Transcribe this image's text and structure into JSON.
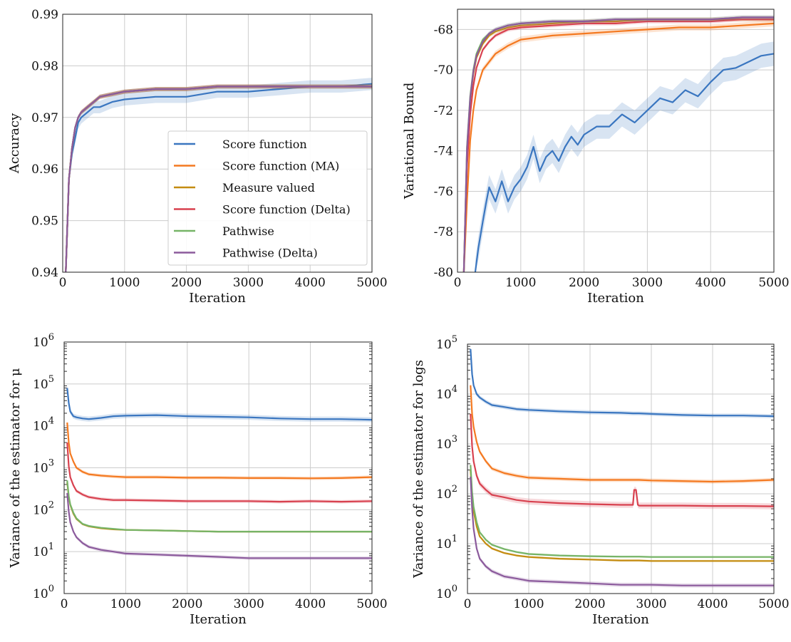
{
  "legend": [
    {
      "name": "Score function",
      "color": "#3a76c0"
    },
    {
      "name": "Score function (MA)",
      "color": "#f47920"
    },
    {
      "name": "Measure valued",
      "color": "#c48c11"
    },
    {
      "name": "Score function (Delta)",
      "color": "#d8414f"
    },
    {
      "name": "Pathwise",
      "color": "#76b467"
    },
    {
      "name": "Pathwise (Delta)",
      "color": "#8b5a9c"
    }
  ],
  "chart_data": [
    {
      "type": "line",
      "xlabel": "Iteration",
      "ylabel": "Accuracy",
      "xlim": [
        0,
        5000
      ],
      "ylim": [
        0.94,
        0.99
      ],
      "xticks": [
        0,
        1000,
        2000,
        3000,
        4000,
        5000
      ],
      "yticks": [
        0.94,
        0.95,
        0.96,
        0.97,
        0.98,
        0.99
      ],
      "ytick_labels": [
        "0.94",
        "0.95",
        "0.96",
        "0.97",
        "0.98",
        "0.99"
      ],
      "grid": true,
      "legend_position": "lower right",
      "x": [
        50,
        100,
        150,
        200,
        250,
        300,
        400,
        500,
        600,
        800,
        1000,
        1500,
        2000,
        2500,
        3000,
        3500,
        4000,
        4500,
        5000
      ],
      "series": [
        {
          "name": "Score function",
          "values": [
            0.94,
            0.958,
            0.963,
            0.966,
            0.969,
            0.97,
            0.971,
            0.972,
            0.972,
            0.973,
            0.9735,
            0.974,
            0.974,
            0.975,
            0.975,
            0.9755,
            0.976,
            0.976,
            0.9765
          ],
          "band": 0.0012
        },
        {
          "name": "Score function (MA)",
          "values": [
            0.94,
            0.958,
            0.964,
            0.968,
            0.97,
            0.971,
            0.972,
            0.973,
            0.974,
            0.9745,
            0.975,
            0.9755,
            0.9755,
            0.976,
            0.976,
            0.976,
            0.976,
            0.976,
            0.976
          ],
          "band": 0.0004
        },
        {
          "name": "Measure valued",
          "values": [
            0.94,
            0.958,
            0.964,
            0.968,
            0.97,
            0.971,
            0.972,
            0.973,
            0.974,
            0.9745,
            0.975,
            0.9755,
            0.9755,
            0.976,
            0.976,
            0.976,
            0.976,
            0.976,
            0.976
          ],
          "band": 0.0004
        },
        {
          "name": "Score function (Delta)",
          "values": [
            0.94,
            0.958,
            0.964,
            0.968,
            0.97,
            0.971,
            0.972,
            0.973,
            0.974,
            0.9745,
            0.975,
            0.9755,
            0.9755,
            0.976,
            0.976,
            0.976,
            0.976,
            0.976,
            0.976
          ],
          "band": 0.0004
        },
        {
          "name": "Pathwise",
          "values": [
            0.94,
            0.958,
            0.964,
            0.968,
            0.97,
            0.971,
            0.972,
            0.973,
            0.974,
            0.9745,
            0.975,
            0.9755,
            0.9755,
            0.976,
            0.976,
            0.976,
            0.976,
            0.976,
            0.976
          ],
          "band": 0.0004
        },
        {
          "name": "Pathwise (Delta)",
          "values": [
            0.94,
            0.958,
            0.964,
            0.968,
            0.97,
            0.971,
            0.972,
            0.973,
            0.974,
            0.9745,
            0.975,
            0.9755,
            0.9755,
            0.976,
            0.976,
            0.976,
            0.976,
            0.976,
            0.976
          ],
          "band": 0.0004
        }
      ]
    },
    {
      "type": "line",
      "xlabel": "Iteration",
      "ylabel": "Variational Bound",
      "xlim": [
        0,
        5000
      ],
      "ylim": [
        -80,
        -67
      ],
      "xticks": [
        0,
        1000,
        2000,
        3000,
        4000,
        5000
      ],
      "yticks": [
        -80,
        -78,
        -76,
        -74,
        -72,
        -70,
        -68
      ],
      "ytick_labels": [
        "-80",
        "-78",
        "-76",
        "-74",
        "-72",
        "-70",
        "-68"
      ],
      "grid": true,
      "series": [
        {
          "name": "Score function",
          "x": [
            280,
            330,
            400,
            450,
            500,
            600,
            700,
            800,
            900,
            1000,
            1100,
            1200,
            1300,
            1400,
            1500,
            1600,
            1700,
            1800,
            1900,
            2000,
            2200,
            2400,
            2600,
            2800,
            3000,
            3200,
            3400,
            3600,
            3800,
            4000,
            4200,
            4400,
            4600,
            4800,
            5000
          ],
          "values": [
            -80,
            -78.8,
            -77.5,
            -76.6,
            -75.8,
            -76.5,
            -75.5,
            -76.5,
            -75.8,
            -75.4,
            -74.8,
            -73.8,
            -75.0,
            -74.3,
            -74.0,
            -74.5,
            -73.8,
            -73.3,
            -73.7,
            -73.2,
            -72.8,
            -72.8,
            -72.2,
            -72.6,
            -72.0,
            -71.4,
            -71.6,
            -71.0,
            -71.3,
            -70.6,
            -70.0,
            -69.9,
            -69.6,
            -69.3,
            -69.2
          ],
          "band": 0.6
        },
        {
          "name": "Score function (MA)",
          "x": [
            100,
            150,
            200,
            250,
            300,
            400,
            500,
            600,
            800,
            1000,
            1500,
            2000,
            2500,
            3000,
            3500,
            4000,
            4500,
            5000
          ],
          "values": [
            -80,
            -76.5,
            -73.5,
            -72.0,
            -71.0,
            -70.0,
            -69.6,
            -69.2,
            -68.8,
            -68.5,
            -68.3,
            -68.2,
            -68.1,
            -68.0,
            -67.9,
            -67.9,
            -67.8,
            -67.7
          ],
          "band": 0.15
        },
        {
          "name": "Measure valued",
          "x": [
            100,
            150,
            200,
            250,
            300,
            400,
            500,
            600,
            800,
            1000,
            1500,
            2000,
            2500,
            3000,
            3500,
            4000,
            4500,
            5000
          ],
          "values": [
            -80,
            -74.0,
            -71.5,
            -70.2,
            -69.4,
            -68.7,
            -68.3,
            -68.1,
            -67.9,
            -67.8,
            -67.7,
            -67.6,
            -67.6,
            -67.5,
            -67.5,
            -67.5,
            -67.5,
            -67.5
          ],
          "band": 0.1
        },
        {
          "name": "Score function (Delta)",
          "x": [
            100,
            150,
            200,
            250,
            300,
            400,
            500,
            600,
            800,
            1000,
            1500,
            2000,
            2500,
            3000,
            3500,
            4000,
            4500,
            5000
          ],
          "values": [
            -80,
            -74.8,
            -72.2,
            -70.8,
            -69.9,
            -69.0,
            -68.6,
            -68.3,
            -68.0,
            -67.9,
            -67.8,
            -67.7,
            -67.7,
            -67.6,
            -67.6,
            -67.6,
            -67.5,
            -67.5
          ],
          "band": 0.1
        },
        {
          "name": "Pathwise",
          "x": [
            100,
            150,
            200,
            250,
            300,
            400,
            500,
            600,
            800,
            1000,
            1500,
            2000,
            2500,
            3000,
            3500,
            4000,
            4500,
            5000
          ],
          "values": [
            -80,
            -73.8,
            -71.3,
            -70.0,
            -69.2,
            -68.5,
            -68.2,
            -68.0,
            -67.8,
            -67.7,
            -67.6,
            -67.6,
            -67.5,
            -67.5,
            -67.5,
            -67.5,
            -67.4,
            -67.4
          ],
          "band": 0.1
        },
        {
          "name": "Pathwise (Delta)",
          "x": [
            100,
            150,
            200,
            250,
            300,
            400,
            500,
            600,
            800,
            1000,
            1500,
            2000,
            2500,
            3000,
            3500,
            4000,
            4500,
            5000
          ],
          "values": [
            -80,
            -73.9,
            -71.4,
            -70.1,
            -69.3,
            -68.6,
            -68.2,
            -68.0,
            -67.8,
            -67.7,
            -67.6,
            -67.6,
            -67.5,
            -67.5,
            -67.5,
            -67.5,
            -67.4,
            -67.4
          ],
          "band": 0.1
        }
      ]
    },
    {
      "type": "line",
      "scale": "log",
      "xlabel": "Iteration",
      "ylabel": "Variance of the estimator for μ",
      "xlim": [
        0,
        5000
      ],
      "ylim": [
        1,
        1000000
      ],
      "xticks": [
        0,
        1000,
        2000,
        3000,
        4000,
        5000
      ],
      "yticks": [
        1,
        10,
        100,
        1000,
        10000,
        100000,
        1000000
      ],
      "ytick_base": "10",
      "ytick_exponents": [
        "0",
        "1",
        "2",
        "3",
        "4",
        "5",
        "6"
      ],
      "grid": true,
      "x": [
        50,
        75,
        100,
        150,
        200,
        300,
        400,
        600,
        800,
        1000,
        1500,
        2000,
        2500,
        3000,
        3500,
        4000,
        4500,
        5000
      ],
      "series": [
        {
          "name": "Score function",
          "values": [
            80000,
            35000,
            22000,
            17000,
            16000,
            15000,
            14500,
            15500,
            17000,
            17500,
            18000,
            17000,
            16500,
            16000,
            15000,
            14500,
            14500,
            14000
          ],
          "band": 1.15
        },
        {
          "name": "Score function (MA)",
          "values": [
            12000,
            4000,
            2200,
            1400,
            1000,
            800,
            700,
            650,
            620,
            600,
            600,
            580,
            580,
            570,
            570,
            560,
            570,
            600
          ],
          "band": 1.1
        },
        {
          "name": "Measure valued",
          "values": [
            450,
            200,
            130,
            80,
            60,
            45,
            40,
            36,
            34,
            33,
            32,
            31,
            30,
            30,
            30,
            30,
            30,
            30
          ],
          "band": 1.05
        },
        {
          "name": "Score function (Delta)",
          "values": [
            4000,
            1100,
            600,
            380,
            280,
            230,
            200,
            180,
            170,
            170,
            165,
            160,
            160,
            160,
            155,
            160,
            155,
            160
          ],
          "band": 1.1
        },
        {
          "name": "Pathwise",
          "values": [
            500,
            210,
            135,
            85,
            62,
            46,
            41,
            37,
            35,
            33,
            32,
            31,
            30,
            30,
            30,
            30,
            30,
            30
          ],
          "band": 1.05
        },
        {
          "name": "Pathwise (Delta)",
          "values": [
            250,
            90,
            50,
            30,
            22,
            16,
            13,
            11,
            10,
            9,
            8.5,
            8,
            7.5,
            7,
            7,
            7,
            7,
            7
          ],
          "band": 1.1
        }
      ]
    },
    {
      "type": "line",
      "scale": "log",
      "xlabel": "Iteration",
      "ylabel": "Variance of the  estimator for logs",
      "xlim": [
        0,
        5000
      ],
      "ylim": [
        1,
        100000
      ],
      "xticks": [
        0,
        1000,
        2000,
        3000,
        4000,
        5000
      ],
      "yticks": [
        1,
        10,
        100,
        1000,
        10000,
        100000
      ],
      "ytick_base": "10",
      "ytick_exponents": [
        "0",
        "1",
        "2",
        "3",
        "4",
        "5"
      ],
      "grid": true,
      "x": [
        50,
        75,
        100,
        150,
        200,
        300,
        400,
        600,
        800,
        1000,
        1500,
        2000,
        2500,
        2700,
        2720,
        2750,
        2780,
        2800,
        3000,
        3500,
        4000,
        4500,
        5000
      ],
      "series": [
        {
          "name": "Score function",
          "values": [
            80000,
            25000,
            15000,
            10000,
            8500,
            7000,
            6000,
            5500,
            5000,
            4800,
            4500,
            4300,
            4200,
            4100,
            4100,
            4100,
            4100,
            4100,
            4000,
            3800,
            3700,
            3700,
            3600
          ],
          "band": 1.1
        },
        {
          "name": "Score function (MA)",
          "values": [
            15000,
            4000,
            2200,
            1100,
            700,
            450,
            320,
            260,
            230,
            210,
            200,
            190,
            190,
            190,
            190,
            190,
            190,
            190,
            185,
            180,
            175,
            180,
            190
          ],
          "band": 1.1
        },
        {
          "name": "Measure valued",
          "values": [
            300,
            90,
            45,
            22,
            14,
            10,
            8,
            6.5,
            5.8,
            5.4,
            5.0,
            4.8,
            4.6,
            4.6,
            4.6,
            4.6,
            4.6,
            4.6,
            4.5,
            4.5,
            4.5,
            4.5,
            4.5
          ],
          "band": 1.05
        },
        {
          "name": "Score function (Delta)",
          "values": [
            4000,
            900,
            450,
            230,
            160,
            120,
            95,
            85,
            75,
            70,
            65,
            62,
            60,
            60,
            120,
            120,
            60,
            58,
            58,
            58,
            57,
            57,
            56
          ],
          "band": 1.15
        },
        {
          "name": "Pathwise",
          "values": [
            380,
            110,
            55,
            27,
            17,
            12,
            9.5,
            7.8,
            6.8,
            6.2,
            5.8,
            5.6,
            5.5,
            5.5,
            5.5,
            5.5,
            5.5,
            5.5,
            5.4,
            5.4,
            5.4,
            5.4,
            5.4
          ],
          "band": 1.05
        },
        {
          "name": "Pathwise (Delta)",
          "values": [
            220,
            50,
            20,
            8,
            5,
            3.5,
            2.8,
            2.2,
            2.0,
            1.8,
            1.7,
            1.6,
            1.5,
            1.5,
            1.5,
            1.5,
            1.5,
            1.5,
            1.5,
            1.45,
            1.45,
            1.45,
            1.45
          ],
          "band": 1.1
        }
      ]
    }
  ]
}
